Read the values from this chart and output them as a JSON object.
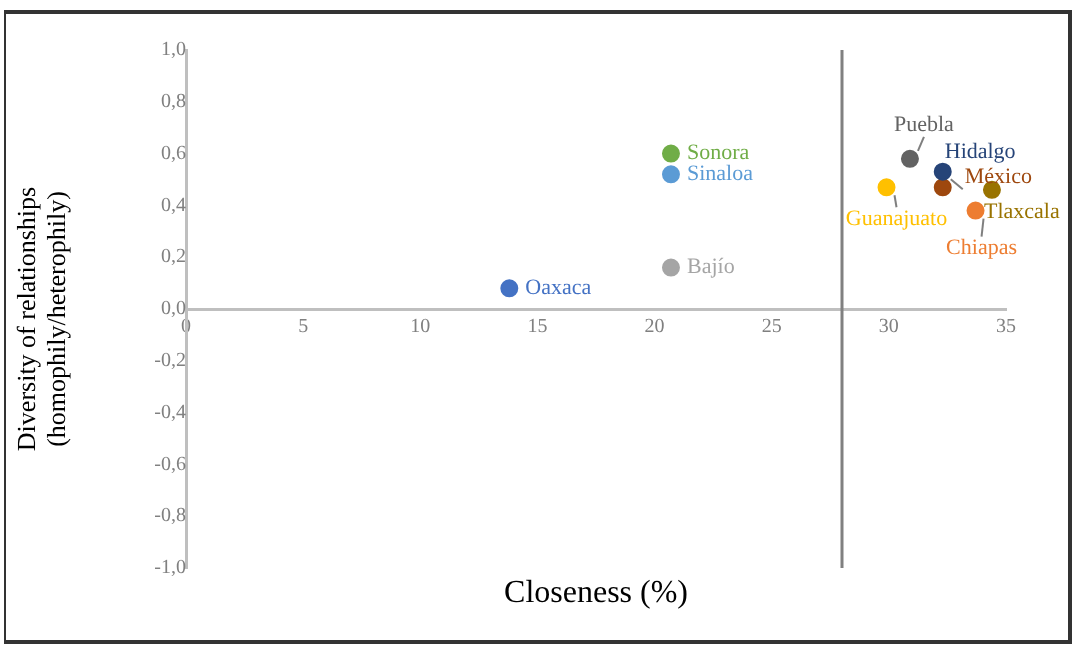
{
  "chart_data": {
    "type": "scatter",
    "xlabel": "Closeness (%)",
    "ylabel": "Diversity of relationships (homophily/heterophily)",
    "xlim": [
      0,
      35
    ],
    "xticks": [
      0,
      5,
      10,
      15,
      20,
      25,
      30,
      35
    ],
    "ylim": [
      -1,
      1
    ],
    "yticks": [
      {
        "value": -1,
        "label": "-1,0"
      },
      {
        "value": -0.8,
        "label": "-0,8"
      },
      {
        "value": -0.6,
        "label": "-0,6"
      },
      {
        "value": -0.4,
        "label": "-0,4"
      },
      {
        "value": -0.2,
        "label": "-0,2"
      },
      {
        "value": 0,
        "label": "0,0"
      },
      {
        "value": 0.2,
        "label": "0,2"
      },
      {
        "value": 0.4,
        "label": "0,4"
      },
      {
        "value": 0.6,
        "label": "0,6"
      },
      {
        "value": 0.8,
        "label": "0,8"
      },
      {
        "value": 1,
        "label": "1,0"
      }
    ],
    "grid": false,
    "legend": false,
    "marker": "circle",
    "ref_lines": [
      {
        "axis": "x",
        "value": 28,
        "label": null,
        "color": "#808080"
      }
    ],
    "series": [
      {
        "name": "Oaxaca",
        "color": "#4472c4",
        "x": [
          13.8
        ],
        "values": [
          0.08
        ]
      },
      {
        "name": "Sonora",
        "color": "#70ad47",
        "x": [
          20.7
        ],
        "values": [
          0.6
        ]
      },
      {
        "name": "Sinaloa",
        "color": "#5b9bd5",
        "x": [
          20.7
        ],
        "values": [
          0.52
        ]
      },
      {
        "name": "Bajío",
        "color": "#a5a5a5",
        "x": [
          20.7
        ],
        "values": [
          0.16
        ]
      },
      {
        "name": "Puebla",
        "color": "#636363",
        "x": [
          30.9
        ],
        "values": [
          0.58
        ]
      },
      {
        "name": "Hidalgo",
        "color": "#264478",
        "x": [
          32.3
        ],
        "values": [
          0.53
        ]
      },
      {
        "name": "México",
        "color": "#9e480e",
        "x": [
          32.3
        ],
        "values": [
          0.47
        ]
      },
      {
        "name": "Tlaxcala",
        "color": "#997300",
        "x": [
          34.4
        ],
        "values": [
          0.46
        ]
      },
      {
        "name": "Chiapas",
        "color": "#ed7d31",
        "x": [
          33.7
        ],
        "values": [
          0.38
        ]
      },
      {
        "name": "Guanajuato",
        "color": "#ffc000",
        "x": [
          29.9
        ],
        "values": [
          0.47
        ]
      }
    ]
  }
}
